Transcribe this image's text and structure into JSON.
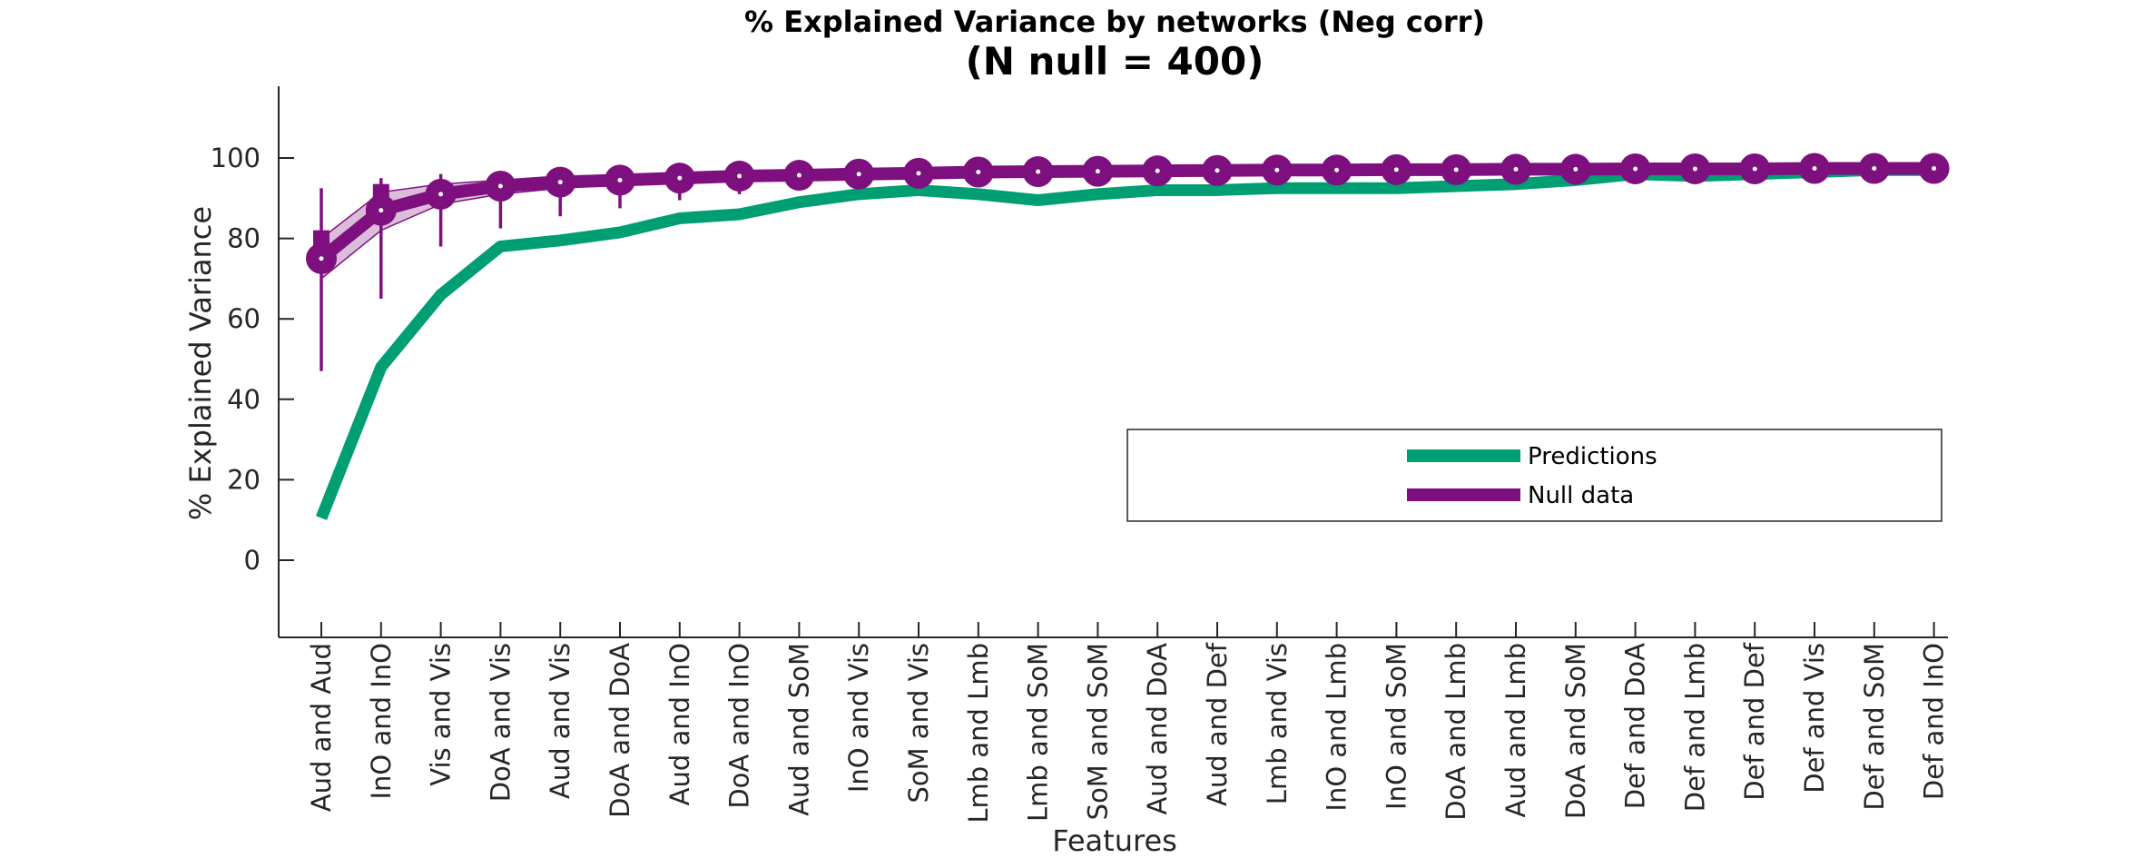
{
  "chart_data": {
    "type": "line",
    "title": "% Explained Variance by networks (Neg corr)",
    "subtitle": "(N null = 400)",
    "xlabel": "Features",
    "ylabel": "% Explained Variance",
    "ylim": [
      -20,
      118
    ],
    "yticks": [
      0,
      20,
      40,
      60,
      80,
      100
    ],
    "grid": false,
    "legend_placement": "lower-right",
    "categories": [
      "Aud and Aud",
      "InO and InO",
      "Vis and Vis",
      "DoA and Vis",
      "Aud and Vis",
      "DoA and DoA",
      "Aud and InO",
      "DoA and InO",
      "Aud and SoM",
      "InO and Vis",
      "SoM and Vis",
      "Lmb and Lmb",
      "Lmb and SoM",
      "SoM and SoM",
      "Aud and DoA",
      "Aud and Def",
      "Lmb and Vis",
      "InO and Lmb",
      "InO and SoM",
      "DoA and Lmb",
      "Aud and Lmb",
      "DoA and SoM",
      "Def and DoA",
      "Def and Lmb",
      "Def and Def",
      "Def and Vis",
      "Def and SoM",
      "Def and InO"
    ],
    "series": [
      {
        "name": "Predictions",
        "color": "#009E73",
        "values": [
          10.5,
          48,
          66,
          78,
          79.5,
          81.5,
          85,
          86,
          89,
          91,
          92,
          91,
          89.5,
          91,
          92,
          92,
          92.5,
          92.5,
          92.5,
          93,
          93.5,
          94.5,
          96,
          95.5,
          96,
          96.5,
          97,
          97
        ]
      },
      {
        "name": "Null data",
        "color": "#7E0F7E",
        "values": [
          75,
          87,
          91,
          93,
          94,
          94.5,
          95,
          95.5,
          95.7,
          96,
          96.2,
          96.5,
          96.6,
          96.7,
          96.8,
          96.9,
          97,
          97,
          97.1,
          97.1,
          97.2,
          97.2,
          97.3,
          97.3,
          97.3,
          97.4,
          97.4,
          97.4
        ],
        "band_upper": [
          80,
          91.5,
          93.5,
          94.5,
          95.5,
          95.7,
          96,
          96.2,
          96.4,
          96.6,
          96.8,
          97,
          97,
          97.1,
          97.2,
          97.3,
          97.3,
          97.4,
          97.4,
          97.4,
          97.5,
          97.5,
          97.6,
          97.6,
          97.6,
          97.6,
          97.6,
          97.6
        ],
        "band_lower": [
          70,
          82,
          88.5,
          91,
          92.5,
          93.3,
          94,
          94.8,
          95,
          95.4,
          95.6,
          96,
          96.2,
          96.3,
          96.4,
          96.5,
          96.7,
          96.7,
          96.8,
          96.8,
          96.9,
          96.9,
          97,
          97,
          97,
          97.2,
          97.2,
          97.2
        ],
        "err_upper": [
          92.5,
          95,
          96,
          96,
          96,
          96,
          96.5,
          96.5,
          96.5,
          96.8,
          97,
          97,
          97,
          97.1,
          97.2,
          97.3,
          97.3,
          97.4,
          97.4,
          97.4,
          97.5,
          97.5,
          97.6,
          97.6,
          97.6,
          97.6,
          97.6,
          97.6
        ],
        "err_lower": [
          47,
          65,
          78,
          82.5,
          85.5,
          87.5,
          89.5,
          91,
          92.5,
          93.5,
          94,
          94.5,
          95,
          95.5,
          95.5,
          95.8,
          96,
          96,
          96.2,
          96.3,
          96.5,
          96.5,
          96.8,
          96.8,
          96.9,
          97,
          97,
          97
        ]
      }
    ]
  }
}
